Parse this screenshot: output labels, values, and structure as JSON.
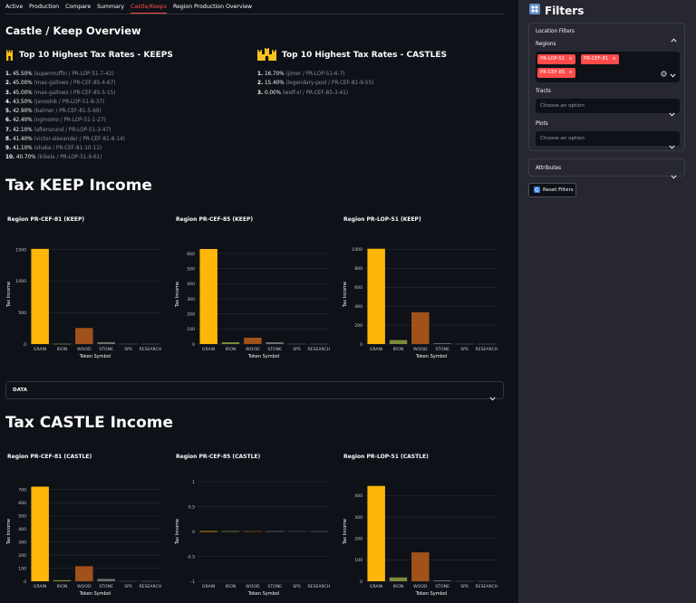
{
  "tabs": [
    {
      "label": "Active",
      "active": false
    },
    {
      "label": "Production",
      "active": false
    },
    {
      "label": "Compare",
      "active": false
    },
    {
      "label": "Summary",
      "active": false
    },
    {
      "label": "Castle/Keeps",
      "active": true
    },
    {
      "label": "Region Production Overview",
      "active": false
    }
  ],
  "page_title": "Castle / Keep Overview",
  "keeps_top": {
    "title": "Top 10 Highest Tax Rates - KEEPS",
    "rows": [
      {
        "rank": "1.",
        "pct": "45.50%",
        "detail": "(supermuffin / PR-LOP-51-7-42)"
      },
      {
        "rank": "2.",
        "pct": "45.00%",
        "detail": "(max-gallows / PR-CEF-85-4-67)"
      },
      {
        "rank": "3.",
        "pct": "45.00%",
        "detail": "(max-gallows / PR-CEF-85-5-15)"
      },
      {
        "rank": "4.",
        "pct": "43.50%",
        "detail": "(janoshik / PR-LOP-51-8-37)"
      },
      {
        "rank": "5.",
        "pct": "42.90%",
        "detail": "(balmer / PR-CEF-81-5-69)"
      },
      {
        "rank": "6.",
        "pct": "42.40%",
        "detail": "(ngmomo / PR-LOP-51-1-27)"
      },
      {
        "rank": "7.",
        "pct": "42.10%",
        "detail": "(aftersound / PR-LOP-51-3-47)"
      },
      {
        "rank": "8.",
        "pct": "41.40%",
        "detail": "(victor-alexander / PR-CEF-81-8-14)"
      },
      {
        "rank": "9.",
        "pct": "41.10%",
        "detail": "(shaka / PR-CEF-81-10-11)"
      },
      {
        "rank": "10.",
        "pct": "40.70%",
        "detail": "(kibela / PR-LOP-51-9-61)"
      }
    ]
  },
  "castles_top": {
    "title": "Top 10 Highest Tax Rates - CASTLES",
    "rows": [
      {
        "rank": "1.",
        "pct": "16.70%",
        "detail": "(jimer / PR-LOP-51-6-7)"
      },
      {
        "rank": "2.",
        "pct": "15.40%",
        "detail": "(legendary-pool / PR-CEF-81-9-55)"
      },
      {
        "rank": "3.",
        "pct": "0.00%",
        "detail": "(wolf-sl / PR-CEF-85-3-41)"
      }
    ]
  },
  "keep_section_title": "Tax KEEP Income",
  "castle_section_title": "Tax CASTLE Income",
  "data_expander_label": "DATA",
  "colors": {
    "grain": "#ffb60a",
    "iron": "#808b3a",
    "wood": "#a0521a",
    "stone": "#6f6f6f",
    "sps": "#4a4a4a",
    "research": "#5a5a5a",
    "accent": "#ff4b4b",
    "grid": "#2b2e38"
  },
  "chart_data": [
    {
      "type": "bar",
      "title": "Region PR-CEF-81 (KEEP)",
      "xlabel": "Token Symbol",
      "ylabel": "Tax Income",
      "categories": [
        "GRAIN",
        "IRON",
        "WOOD",
        "STONE",
        "SPS",
        "RESEARCH"
      ],
      "values": [
        1510,
        8,
        255,
        30,
        3,
        2
      ],
      "ylim": [
        0,
        1580
      ],
      "yticks": [
        0,
        500,
        1000,
        1500
      ]
    },
    {
      "type": "bar",
      "title": "Region PR-CEF-85 (KEEP)",
      "xlabel": "Token Symbol",
      "ylabel": "Tax Income",
      "categories": [
        "GRAIN",
        "IRON",
        "WOOD",
        "STONE",
        "SPS",
        "RESEARCH"
      ],
      "values": [
        630,
        12,
        42,
        12,
        2,
        1
      ],
      "ylim": [
        0,
        660
      ],
      "yticks": [
        0,
        100,
        200,
        300,
        400,
        500,
        600
      ]
    },
    {
      "type": "bar",
      "title": "Region PR-LOP-51 (KEEP)",
      "xlabel": "Token Symbol",
      "ylabel": "Tax Income",
      "categories": [
        "GRAIN",
        "IRON",
        "WOOD",
        "STONE",
        "SPS",
        "RESEARCH"
      ],
      "values": [
        1005,
        42,
        335,
        8,
        2,
        1
      ],
      "ylim": [
        0,
        1050
      ],
      "yticks": [
        0,
        200,
        400,
        600,
        800,
        1000
      ]
    },
    {
      "type": "bar",
      "title": "Region PR-CEF-81 (CASTLE)",
      "xlabel": "Token Symbol",
      "ylabel": "Tax Income",
      "categories": [
        "GRAIN",
        "IRON",
        "WOOD",
        "STONE",
        "SPS",
        "RESEARCH"
      ],
      "values": [
        722,
        8,
        115,
        18,
        3,
        2
      ],
      "ylim": [
        0,
        760
      ],
      "yticks": [
        0,
        100,
        200,
        300,
        400,
        500,
        600,
        700
      ]
    },
    {
      "type": "bar",
      "title": "Region PR-CEF-85 (CASTLE)",
      "xlabel": "Token Symbol",
      "ylabel": "Tax Income",
      "categories": [
        "GRAIN",
        "IRON",
        "WOOD",
        "STONE",
        "SPS",
        "RESEARCH"
      ],
      "values": [
        0,
        0,
        0,
        0,
        0,
        0
      ],
      "ylim": [
        -1,
        1
      ],
      "yticks": [
        -1,
        -0.5,
        0,
        0.5,
        1
      ]
    },
    {
      "type": "bar",
      "title": "Region PR-LOP-51 (CASTLE)",
      "xlabel": "Token Symbol",
      "ylabel": "Tax Income",
      "categories": [
        "GRAIN",
        "IRON",
        "WOOD",
        "STONE",
        "SPS",
        "RESEARCH"
      ],
      "values": [
        445,
        18,
        135,
        4,
        2,
        1
      ],
      "ylim": [
        0,
        465
      ],
      "yticks": [
        0,
        100,
        200,
        300,
        400
      ]
    }
  ],
  "sidebar": {
    "title": "Filters",
    "location_filters_label": "Location Filters",
    "regions_label": "Regions",
    "regions_selected": [
      "PR-LOP-51",
      "PR-CEF-81",
      "PR-CEF-85"
    ],
    "tracts_label": "Tracts",
    "tracts_placeholder": "Choose an option",
    "plots_label": "Plots",
    "plots_placeholder": "Choose an option",
    "attributes_label": "Attributes",
    "reset_label": "Reset Filters"
  }
}
